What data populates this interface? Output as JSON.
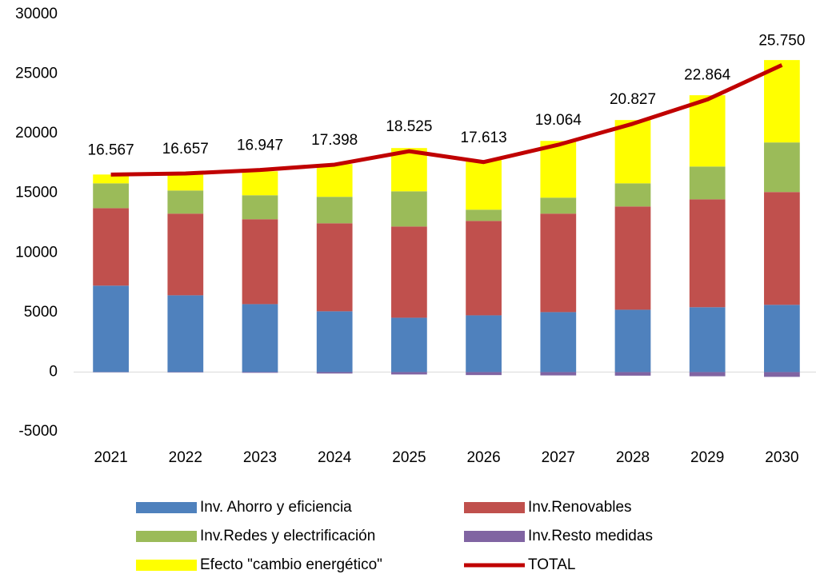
{
  "chart_data": {
    "type": "bar",
    "stacked": true,
    "categories": [
      "2021",
      "2022",
      "2023",
      "2024",
      "2025",
      "2026",
      "2027",
      "2028",
      "2029",
      "2030"
    ],
    "series": [
      {
        "name": "Inv. Ahorro y eficiencia",
        "color": "#4f81bd",
        "values": [
          7250,
          6440,
          5700,
          5100,
          4560,
          4760,
          5030,
          5230,
          5440,
          5640
        ]
      },
      {
        "name": "Inv.Renovables",
        "color": "#c0504d",
        "values": [
          6500,
          6850,
          7120,
          7380,
          7650,
          7920,
          8260,
          8660,
          9050,
          9460
        ]
      },
      {
        "name": "Inv.Redes y electrificación",
        "color": "#9bbb59",
        "values": [
          2080,
          1940,
          2010,
          2220,
          2950,
          940,
          1340,
          1940,
          2750,
          4160
        ]
      },
      {
        "name": "Inv.Resto medidas",
        "color": "#8064a2",
        "values": [
          -20,
          -30,
          -60,
          -120,
          -200,
          -250,
          -280,
          -300,
          -350,
          -400
        ]
      },
      {
        "name": "Efecto \"cambio energético\"",
        "color": "#ffff00",
        "values": [
          740,
          1480,
          2010,
          2750,
          3630,
          4160,
          4760,
          5310,
          5980,
          6910
        ]
      },
      {
        "name": "TOTAL",
        "type": "line",
        "color": "#c00000",
        "values": [
          16567,
          16657,
          16947,
          17398,
          18525,
          17613,
          19064,
          20827,
          22864,
          25750
        ],
        "value_labels": [
          "16.567",
          "16.657",
          "16.947",
          "17.398",
          "18.525",
          "17.613",
          "19.064",
          "20.827",
          "22.864",
          "25.750"
        ]
      }
    ],
    "ylim": [
      -5000,
      30000
    ],
    "yticks": [
      -5000,
      0,
      5000,
      10000,
      15000,
      20000,
      25000,
      30000
    ],
    "grid": false,
    "legend": "bottom"
  }
}
